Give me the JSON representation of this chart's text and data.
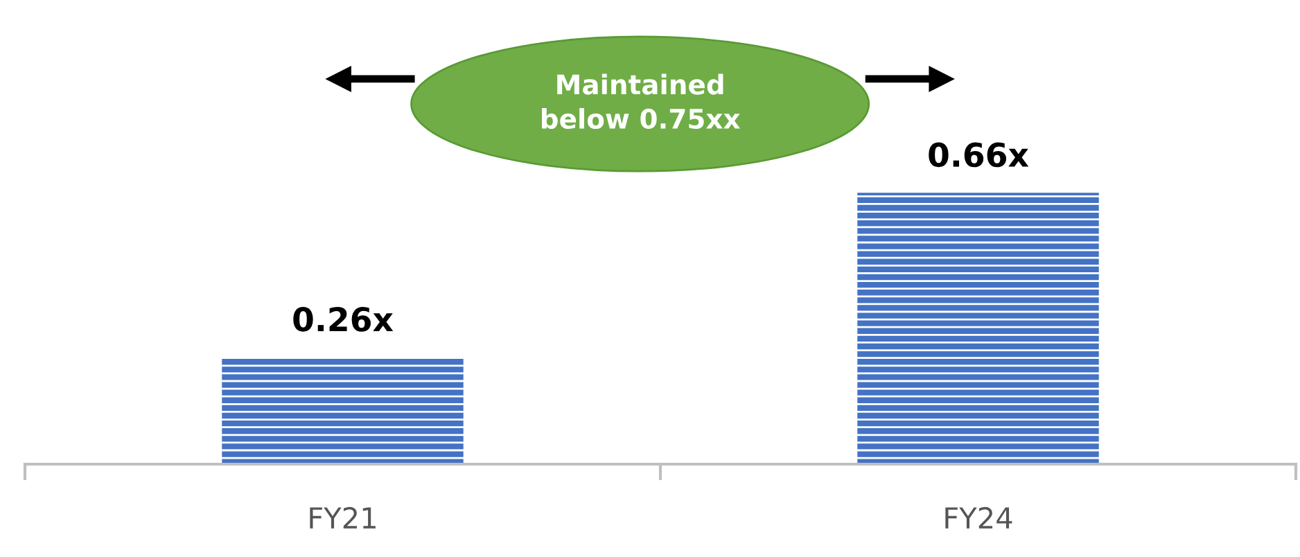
{
  "chart_data": {
    "type": "bar",
    "categories": [
      "FY21",
      "FY24"
    ],
    "values": [
      0.26,
      0.66
    ],
    "value_labels": [
      "0.26x",
      "0.66x"
    ],
    "color": "#4472c4",
    "grid": false,
    "legend": false,
    "annotations": [
      "Maintained below 0.75xx"
    ]
  }
}
